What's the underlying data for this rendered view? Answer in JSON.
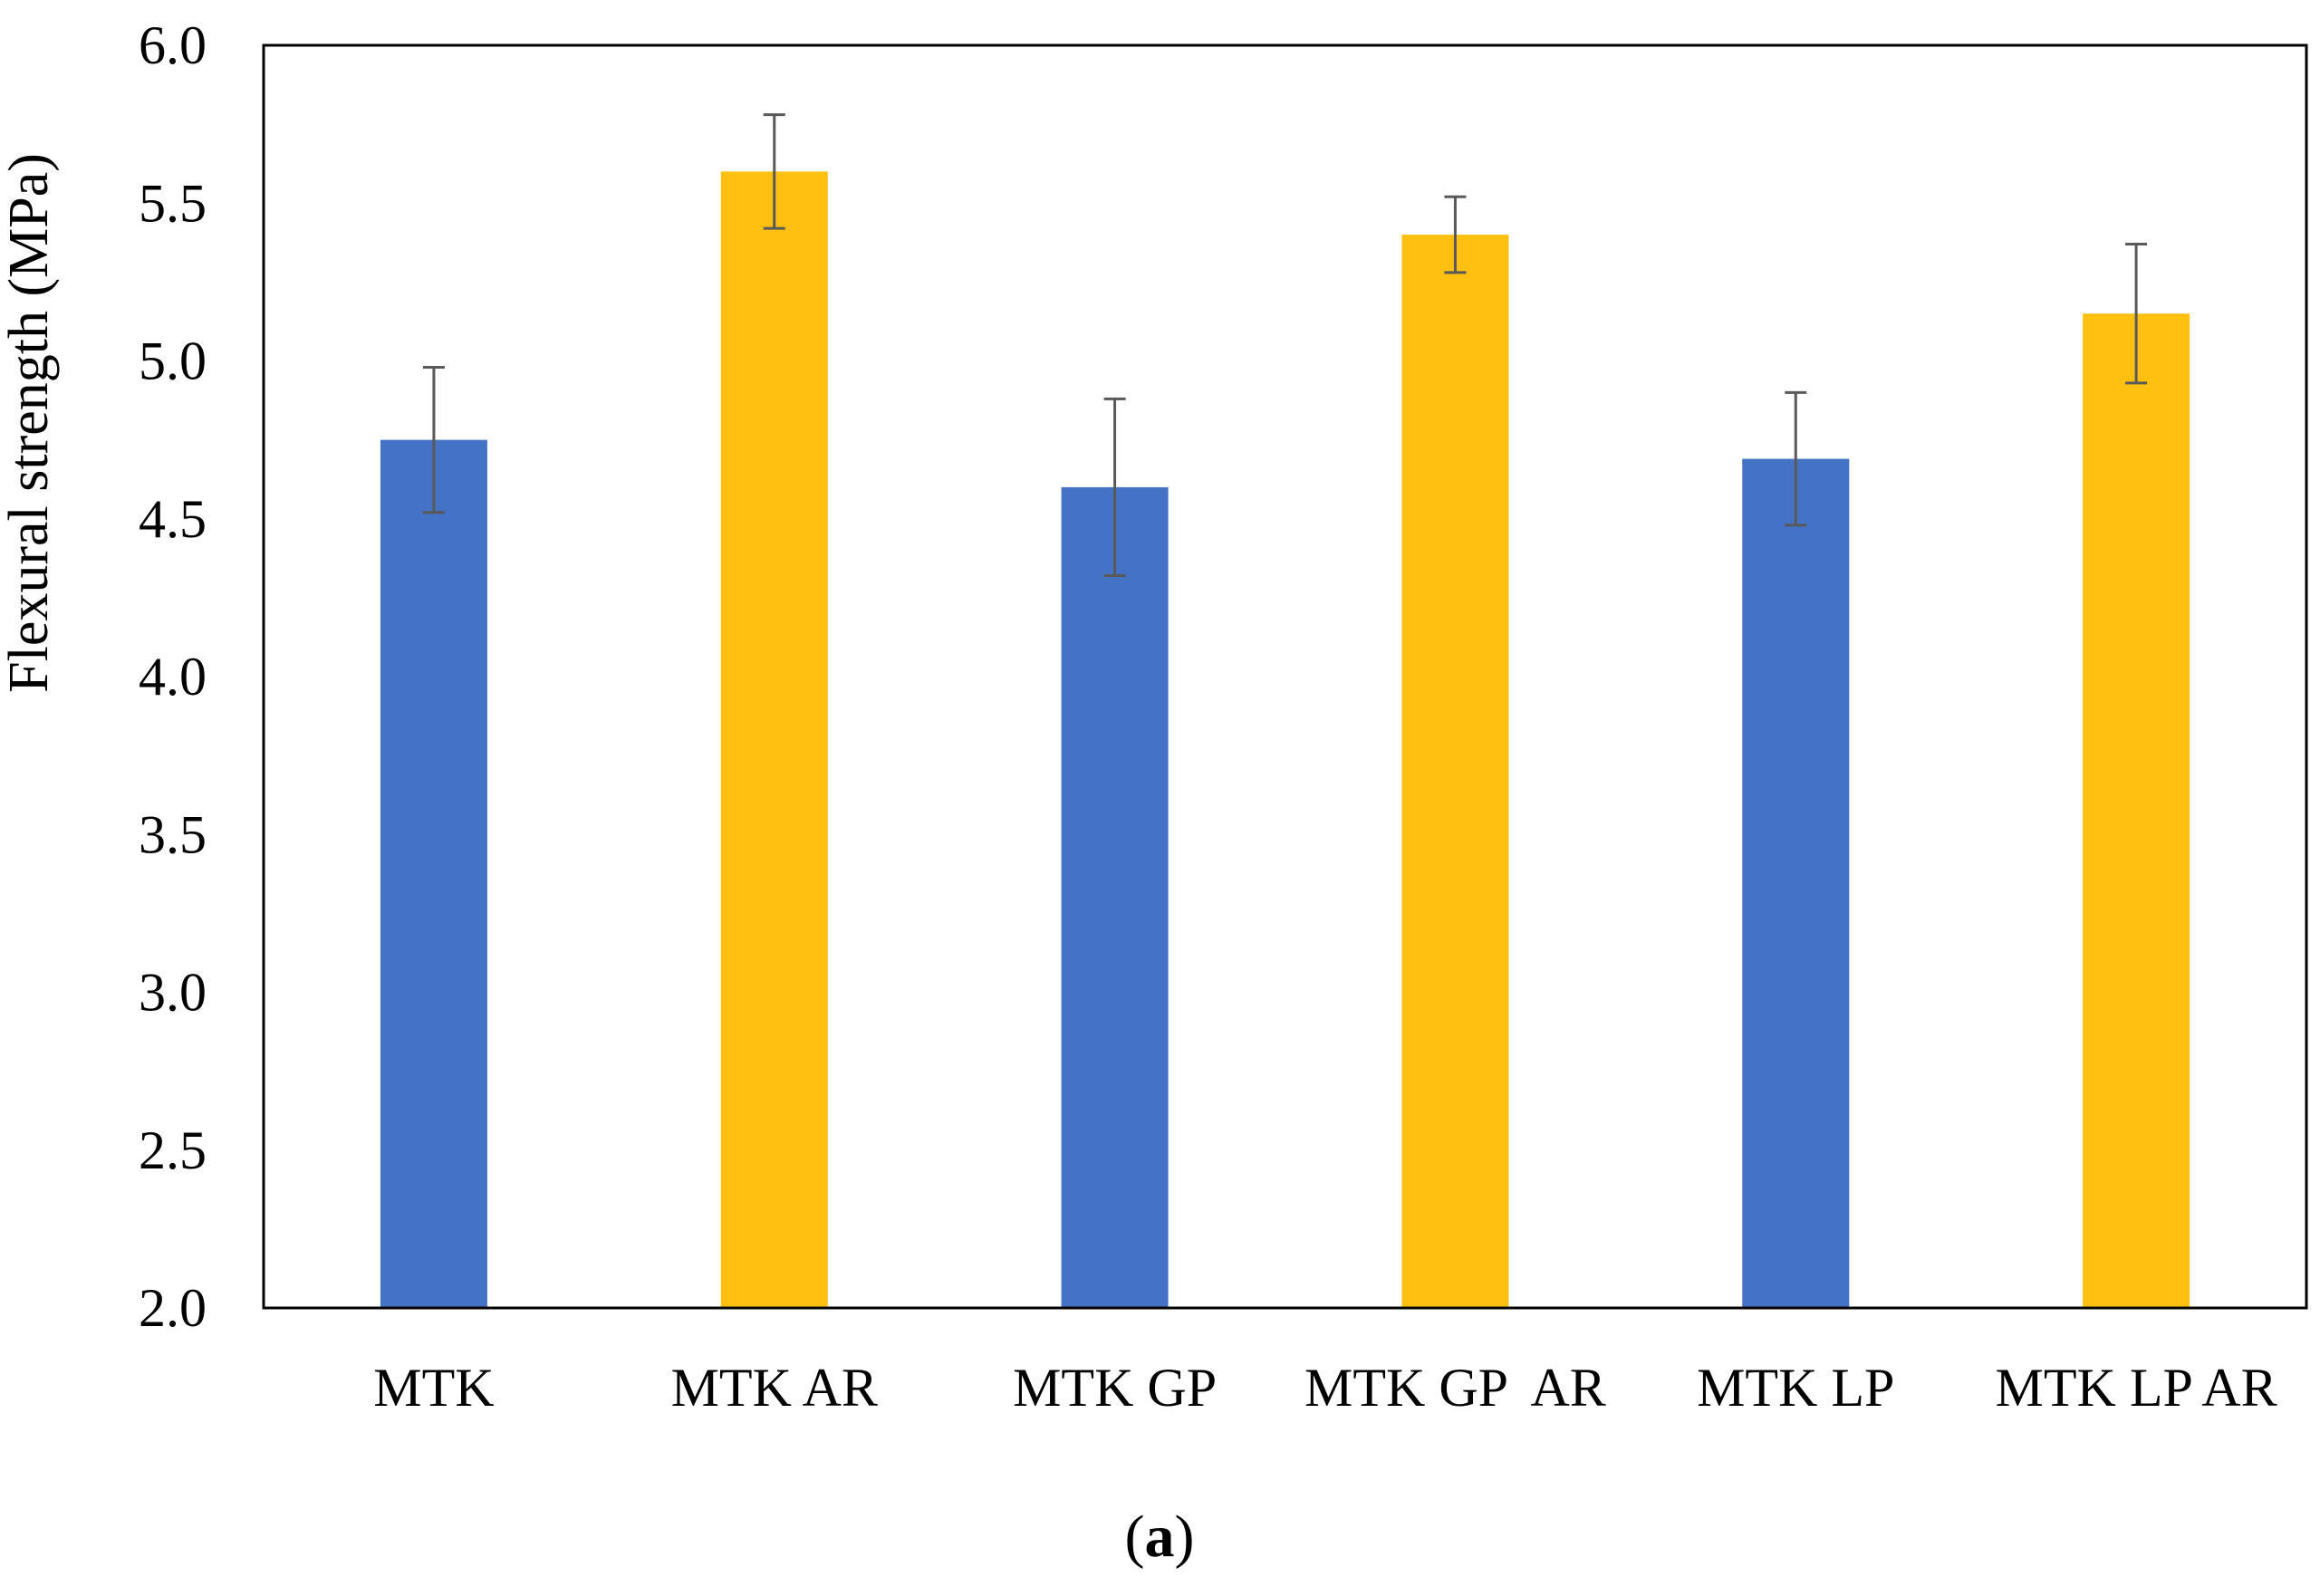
{
  "chart_data": {
    "type": "bar",
    "title": "",
    "xlabel": "",
    "ylabel": "Flexural strength (MPa)",
    "ylim": [
      2.0,
      6.0
    ],
    "yticks": [
      "2.0",
      "2.5",
      "3.0",
      "3.5",
      "4.0",
      "4.5",
      "5.0",
      "5.5",
      "6.0"
    ],
    "categories": [
      "MTK",
      "MTK AR",
      "MTK GP",
      "MTK GP  AR",
      "MTK LP",
      "MTK LP AR"
    ],
    "values": [
      4.75,
      5.6,
      4.6,
      5.4,
      4.69,
      5.15
    ],
    "errors": [
      0.23,
      0.18,
      0.28,
      0.12,
      0.21,
      0.22
    ],
    "colors": [
      "#4472C4",
      "#FFC012",
      "#4472C4",
      "#FFC012",
      "#4472C4",
      "#FFC012"
    ],
    "error_bar_color": "#595959",
    "grid": false,
    "legend": "none"
  },
  "panel": {
    "open": "(",
    "letter": "a",
    "close": ")"
  }
}
